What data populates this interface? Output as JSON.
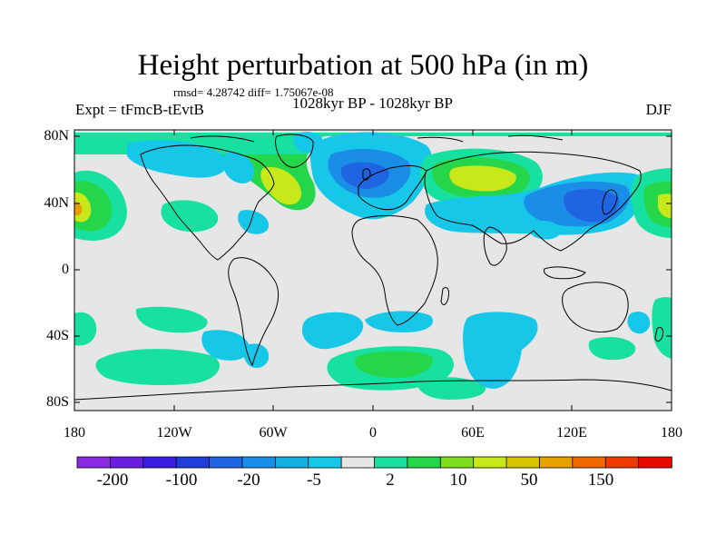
{
  "title": "Height perturbation at 500 hPa (in m)",
  "stats_line": "rmsd= 4.28742 diff= 1.75067e-08",
  "experiment": "Expt = tFmcB-tEvtB",
  "period": "1028kyr BP - 1028kyr BP",
  "season": "DJF",
  "lat_labels": [
    "80N",
    "40N",
    "0",
    "40S",
    "80S"
  ],
  "lon_labels": [
    "180",
    "120W",
    "60W",
    "0",
    "60E",
    "120E",
    "180"
  ],
  "colorbar": {
    "labels": [
      "-200",
      "-100",
      "-20",
      "-5",
      "2",
      "10",
      "50",
      "150"
    ],
    "colors": [
      "#8a2be2",
      "#6a1ee0",
      "#3a1fe0",
      "#1f3fd8",
      "#1f64e0",
      "#1a8ee6",
      "#17aee0",
      "#17c7e8",
      "#e6e6e6",
      "#18e0a0",
      "#26d64a",
      "#7fdc1e",
      "#c9e81a",
      "#d6c400",
      "#e6a000",
      "#ee6a00",
      "#ee3a00",
      "#e80a00"
    ]
  },
  "colors": {
    "land_bg": "#e6e6e6",
    "neg_light": "#17c7e8",
    "neg_mid": "#1a8ee6",
    "neg_dark": "#1f64e0",
    "pos_light": "#18e0a0",
    "pos_mid": "#26d64a",
    "pos_strong": "#c9e81a",
    "pos_peak": "#e6a000"
  }
}
